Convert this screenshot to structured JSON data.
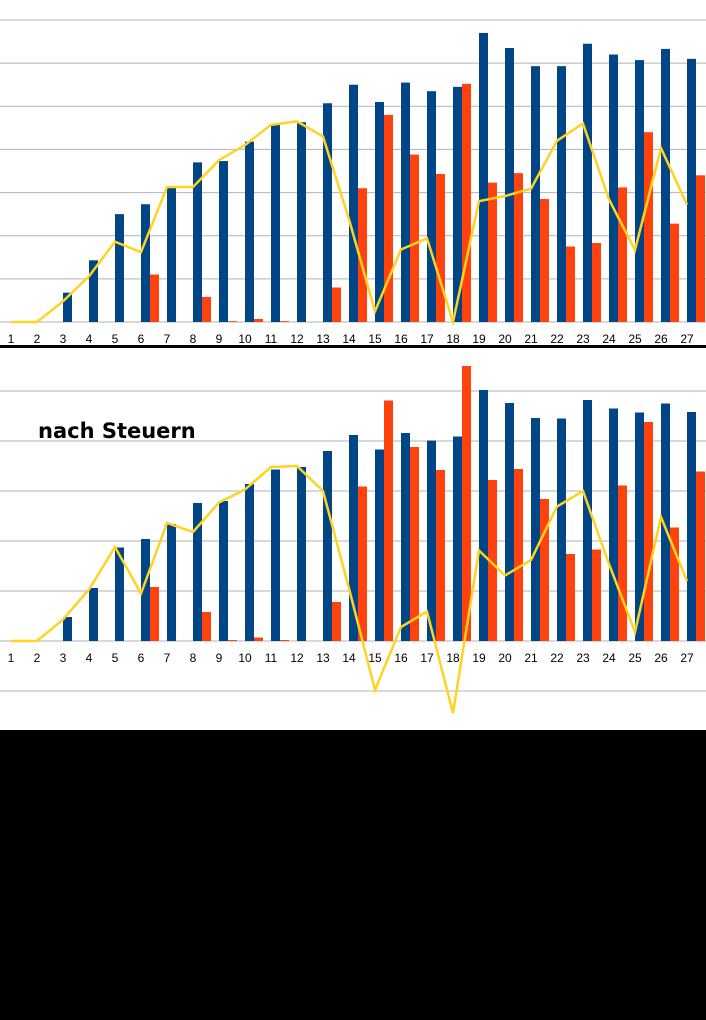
{
  "colors": {
    "background": "#000000",
    "plot_background": "#ffffff",
    "gridline": "#b3b3b3",
    "series_blue": "#004586",
    "series_orange": "#ff420e",
    "series_yellow": "#ffd320"
  },
  "chart_data": [
    {
      "type": "bar",
      "title": "",
      "xlabel": "",
      "ylabel": "",
      "grid": true,
      "legend": "none",
      "ylim": [
        0,
        7
      ],
      "categories": [
        "1",
        "2",
        "3",
        "4",
        "5",
        "6",
        "7",
        "8",
        "9",
        "10",
        "11",
        "12",
        "13",
        "14",
        "15",
        "16",
        "17",
        "18",
        "19",
        "20",
        "21",
        "22",
        "23",
        "24",
        "25",
        "26",
        "27"
      ],
      "series": [
        {
          "kind": "bar",
          "color": "#004586",
          "values": [
            0,
            0,
            0.68,
            1.43,
            2.5,
            2.73,
            3.12,
            3.7,
            3.73,
            4.18,
            4.57,
            4.63,
            5.07,
            5.5,
            5.1,
            5.55,
            5.35,
            5.45,
            6.7,
            6.35,
            5.93,
            5.93,
            6.45,
            6.2,
            6.07,
            6.33,
            6.1
          ]
        },
        {
          "kind": "bar",
          "color": "#ff420e",
          "values": [
            0,
            0,
            0,
            0,
            0,
            1.1,
            0,
            0.58,
            0.02,
            0.07,
            0.02,
            0,
            0.8,
            3.1,
            4.8,
            3.88,
            3.43,
            5.52,
            3.23,
            3.45,
            2.85,
            1.75,
            1.83,
            3.12,
            4.4,
            2.28,
            3.4
          ]
        },
        {
          "kind": "line",
          "color": "#ffd320",
          "values": [
            0,
            0,
            0.48,
            1.06,
            1.86,
            1.62,
            3.13,
            3.13,
            3.75,
            4.1,
            4.57,
            4.65,
            4.3,
            2.38,
            0.25,
            1.68,
            1.94,
            0,
            2.8,
            2.92,
            3.09,
            4.2,
            4.6,
            2.84,
            1.67,
            4.03,
            2.72
          ]
        }
      ]
    },
    {
      "type": "bar",
      "title": "",
      "xlabel": "",
      "ylabel": "",
      "grid": true,
      "legend": "none",
      "ylim": [
        -1.75,
        5.5
      ],
      "categories": [
        "1",
        "2",
        "3",
        "4",
        "5",
        "6",
        "7",
        "8",
        "9",
        "10",
        "11",
        "12",
        "13",
        "14",
        "15",
        "16",
        "17",
        "18",
        "19",
        "20",
        "21",
        "22",
        "23",
        "24",
        "25",
        "26",
        "27"
      ],
      "annotation": "nach Steuern",
      "series": [
        {
          "kind": "bar",
          "color": "#004586",
          "values": [
            0,
            0,
            0.48,
            1.06,
            1.87,
            2.04,
            2.34,
            2.76,
            2.8,
            3.14,
            3.43,
            3.48,
            3.8,
            4.12,
            3.83,
            4.16,
            4.01,
            4.09,
            5.02,
            4.76,
            4.46,
            4.45,
            4.82,
            4.65,
            4.57,
            4.75,
            4.58
          ]
        },
        {
          "kind": "bar",
          "color": "#ff420e",
          "values": [
            0,
            0,
            0,
            0,
            0,
            1.08,
            0,
            0.58,
            0.02,
            0.07,
            0.02,
            0,
            0.78,
            3.09,
            4.81,
            3.88,
            3.42,
            5.5,
            3.22,
            3.44,
            2.84,
            1.74,
            1.83,
            3.11,
            4.38,
            2.27,
            3.39
          ]
        },
        {
          "kind": "line",
          "color": "#ffd320",
          "values": [
            0,
            0,
            0.43,
            1.03,
            1.88,
            0.95,
            2.36,
            2.18,
            2.77,
            3.03,
            3.48,
            3.5,
            3.0,
            1.05,
            -0.98,
            0.28,
            0.59,
            -1.44,
            1.81,
            1.31,
            1.62,
            2.69,
            3.0,
            1.54,
            0.18,
            2.48,
            1.2
          ]
        }
      ]
    }
  ]
}
